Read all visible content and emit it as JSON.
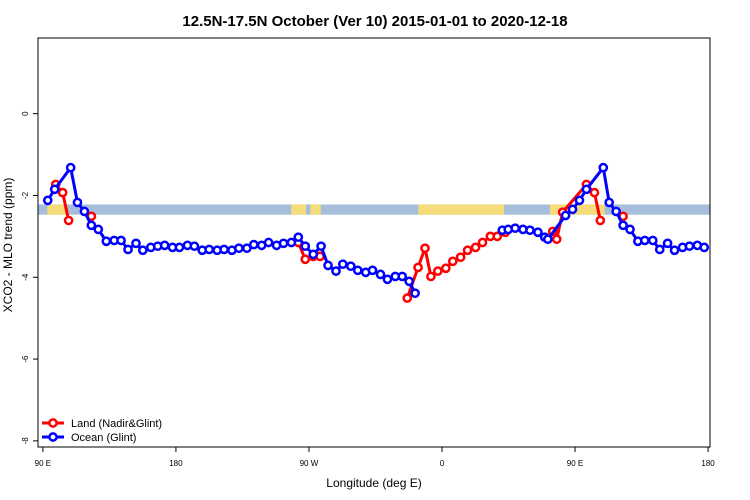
{
  "chart_data": {
    "type": "line",
    "title": "12.5N-17.5N October (Ver 10)   2015-01-01 to 2020-12-18",
    "x_label": "Longitude (deg E)",
    "y_label": "XCO2 - MLO trend (ppm)",
    "xlim": [
      86.7,
      541.3
    ],
    "ylim": [
      -8.15,
      1.85
    ],
    "xticks": [
      {
        "value": 90,
        "label": "90 E"
      },
      180,
      {
        "value": 270,
        "label": "90 W"
      },
      {
        "value": 360,
        "label": "0"
      },
      {
        "value": 450,
        "label": "90 E"
      },
      {
        "value": 540,
        "label": "180"
      }
    ],
    "yticks": [
      -8,
      -6,
      -4,
      -2,
      0
    ],
    "surface_band": {
      "ylim": [
        -2.47,
        -2.22
      ],
      "ocean_color": "#a6bddb",
      "land_color": "#f7dc7a",
      "land": [
        [
          93,
          101
        ],
        [
          101,
          106
        ],
        [
          258,
          268
        ],
        [
          271,
          278
        ],
        [
          344,
          402
        ],
        [
          433,
          470
        ]
      ]
    },
    "legend": "bottom-left",
    "series": [
      {
        "name": "Land (Nadir&Glint)",
        "color": "#ff0000",
        "x": [
          98.7,
          103.4,
          107.4,
          115,
          122.8,
          190,
          262.8,
          267.5,
          272.9,
          277.5,
          310,
          336.5,
          343.8,
          348.5,
          352.5,
          357.2,
          362.6,
          367.3,
          372.6,
          377.3,
          382.7,
          387.4,
          392.7,
          397.4,
          402.8,
          420,
          434.9,
          437.6,
          441.6,
          457.7,
          463.1,
          467.1,
          475,
          482.5
        ],
        "values": [
          -1.73,
          -1.93,
          -2.61,
          null,
          -2.51,
          null,
          -3.15,
          -3.56,
          -3.49,
          -3.49,
          null,
          -4.51,
          -3.76,
          -3.29,
          -3.98,
          -3.85,
          -3.78,
          -3.61,
          -3.51,
          -3.34,
          -3.27,
          -3.15,
          -3.0,
          -3.0,
          -2.9,
          null,
          -2.88,
          -3.07,
          -2.41,
          -1.73,
          -1.93,
          -2.61,
          null,
          -2.51
        ]
      },
      {
        "name": "Ocean (Glint)",
        "color": "#0000ff",
        "x": [
          93.3,
          98.0,
          108.8,
          113.4,
          118.1,
          122.8,
          127.5,
          132.9,
          138.2,
          142.9,
          147.6,
          153.0,
          157.6,
          163.0,
          167.7,
          172.4,
          177.7,
          182.4,
          187.8,
          192.5,
          197.8,
          202.5,
          207.9,
          212.6,
          217.9,
          222.6,
          228.0,
          232.7,
          238.0,
          242.7,
          248.1,
          252.8,
          258.1,
          262.8,
          267.5,
          272.9,
          278.2,
          282.9,
          288.3,
          292.9,
          298.3,
          303.0,
          308.4,
          313.0,
          318.4,
          323.1,
          328.4,
          333.1,
          337.8,
          341.8,
          370,
          400.8,
          404.8,
          409.5,
          414.8,
          419.5,
          424.9,
          429.5,
          431.6,
          443.6,
          448.3,
          453.0,
          457.7,
          469.1,
          473.1,
          477.8,
          482.5,
          487.2,
          492.5,
          497.2,
          502.6,
          507.3,
          512.6,
          517.3,
          522.7,
          527.4,
          532.7,
          537.4
        ],
        "values": [
          -2.12,
          -1.85,
          -1.32,
          -2.17,
          -2.39,
          -2.73,
          -2.83,
          -3.12,
          -3.1,
          -3.1,
          -3.32,
          -3.17,
          -3.34,
          -3.27,
          -3.24,
          -3.22,
          -3.27,
          -3.27,
          -3.22,
          -3.24,
          -3.34,
          -3.32,
          -3.34,
          -3.32,
          -3.34,
          -3.29,
          -3.29,
          -3.2,
          -3.22,
          -3.15,
          -3.22,
          -3.17,
          -3.15,
          -3.02,
          -3.24,
          -3.44,
          -3.24,
          -3.71,
          -3.85,
          -3.68,
          -3.73,
          -3.83,
          -3.88,
          -3.83,
          -3.93,
          -4.05,
          -3.98,
          -3.98,
          -4.1,
          -4.39,
          null,
          -2.85,
          -2.83,
          -2.8,
          -2.83,
          -2.85,
          -2.9,
          -3.02,
          -3.07,
          -2.49,
          -2.34,
          -2.12,
          -1.85,
          -1.32,
          -2.17,
          -2.39,
          -2.73,
          -2.83,
          -3.12,
          -3.1,
          -3.1,
          -3.32,
          -3.17,
          -3.34,
          -3.27,
          -3.24,
          -3.22,
          -3.27
        ]
      }
    ]
  }
}
